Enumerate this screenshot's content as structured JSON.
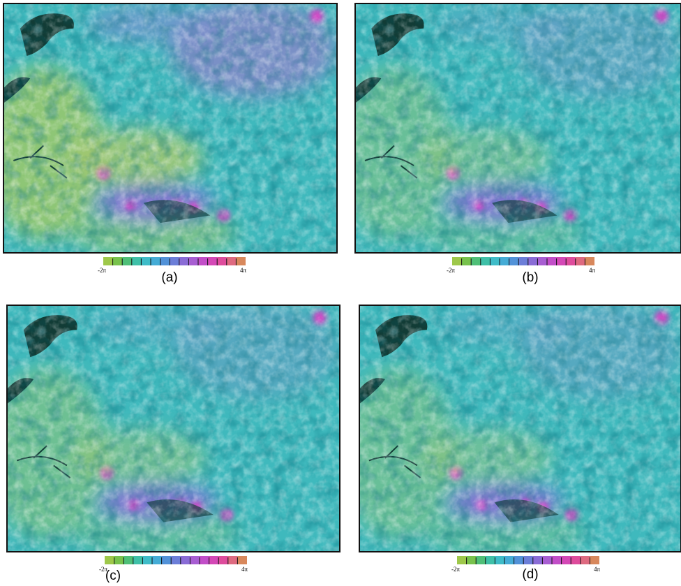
{
  "panels": [
    {
      "label": "(a)",
      "colorbar": {
        "min": "-2π",
        "max": "4π"
      }
    },
    {
      "label": "(b)",
      "colorbar": {
        "min": "-2π",
        "max": "4π"
      }
    },
    {
      "label": "(c)",
      "colorbar": {
        "min": "-2π",
        "max": "4π"
      }
    },
    {
      "label": "(d)",
      "colorbar": {
        "min": "-2π",
        "max": "4π"
      }
    }
  ]
}
